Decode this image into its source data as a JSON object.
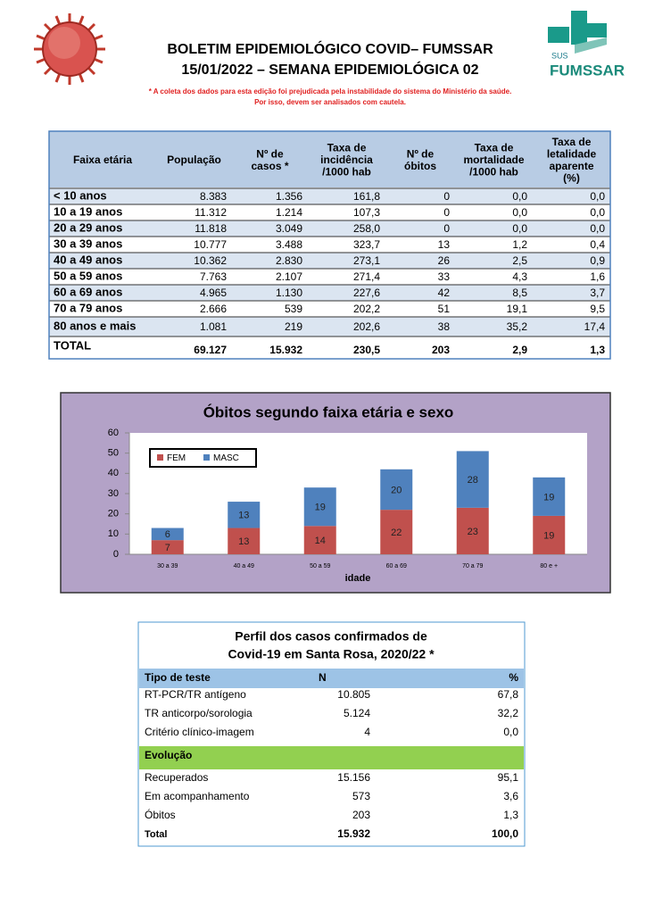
{
  "header": {
    "title_lines": [
      "BOLETIM EPIDEMIOLÓGICO COVID– FUMSSAR",
      "15/01/2022 – SEMANA EPIDEMIOLÓGICA 02"
    ],
    "notes": [
      "* A coleta dos dados para esta edição foi prejudicada pela instabilidade do sistema do Ministério da saúde.",
      "Por isso, devem ser analisados com cautela."
    ],
    "logo": {
      "top": "SUS",
      "brand": "FUMSSAR"
    }
  },
  "table": {
    "columns": [
      [
        "Faixa etária"
      ],
      [
        "População"
      ],
      [
        "Nº de",
        "casos *"
      ],
      [
        "Taxa de",
        "incidência",
        "/1000 hab"
      ],
      [
        "Nº de",
        "óbitos"
      ],
      [
        "Taxa de",
        "mortalidade",
        "/1000 hab"
      ],
      [
        "Taxa de",
        "letalidade",
        "aparente",
        "(%)"
      ]
    ],
    "rows": [
      [
        "< 10 anos",
        "8.383",
        "1.356",
        "161,8",
        "0",
        "0,0",
        "0,0"
      ],
      [
        "10 a 19 anos",
        "11.312",
        "1.214",
        "107,3",
        "0",
        "0,0",
        "0,0"
      ],
      [
        "20 a 29 anos",
        "11.818",
        "3.049",
        "258,0",
        "0",
        "0,0",
        "0,0"
      ],
      [
        "30 a 39 anos",
        "10.777",
        "3.488",
        "323,7",
        "13",
        "1,2",
        "0,4"
      ],
      [
        "40 a 49 anos",
        "10.362",
        "2.830",
        "273,1",
        "26",
        "2,5",
        "0,9"
      ],
      [
        "50 a 59 anos",
        "7.763",
        "2.107",
        "271,4",
        "33",
        "4,3",
        "1,6"
      ],
      [
        "60 a 69 anos",
        "4.965",
        "1.130",
        "227,6",
        "42",
        "8,5",
        "3,7"
      ],
      [
        "70 a 79 anos",
        "2.666",
        "539",
        "202,2",
        "51",
        "19,1",
        "9,5"
      ],
      [
        "80 anos e mais",
        "1.081",
        "219",
        "202,6",
        "38",
        "35,2",
        "17,4"
      ]
    ],
    "total": [
      "TOTAL",
      "69.127",
      "15.932",
      "230,5",
      "203",
      "2,9",
      "1,3"
    ]
  },
  "chart_data": {
    "type": "bar",
    "stacked": true,
    "title": "Óbitos segundo faixa etária e sexo",
    "x_label": "idade",
    "categories": [
      "30 a 39",
      "40 a 49",
      "50 a 59",
      "60 a 69",
      "70 a 79",
      "80 e +"
    ],
    "series": [
      {
        "name": "FEM",
        "color": "#c0504d",
        "values": [
          7,
          13,
          14,
          22,
          23,
          19
        ]
      },
      {
        "name": "MASC",
        "color": "#4f81bd",
        "values": [
          6,
          13,
          19,
          20,
          28,
          19
        ]
      }
    ],
    "ylim": [
      0,
      60
    ],
    "yticks": [
      0,
      10,
      20,
      30,
      40,
      50,
      60
    ],
    "legend": "upper left"
  },
  "profile": {
    "title_lines": [
      "Perfil dos casos confirmados de",
      "Covid-19 em Santa Rosa, 2020/22 *"
    ],
    "columns": [
      "Tipo de teste",
      "N",
      "%"
    ],
    "test_rows": [
      [
        "RT-PCR/TR antígeno",
        "10.805",
        "67,8"
      ],
      [
        "TR anticorpo/sorologia",
        "5.124",
        "32,2"
      ],
      [
        "Critério clínico-imagem",
        "4",
        "0,0"
      ]
    ],
    "evolution_header": "Evolução",
    "evolution_rows": [
      [
        "Recuperados",
        "15.156",
        "95,1"
      ],
      [
        "Em acompanhamento",
        "573",
        "3,6"
      ],
      [
        "Óbitos",
        "203",
        "1,3"
      ]
    ],
    "total": [
      "Total",
      "15.932",
      "100,0"
    ]
  }
}
